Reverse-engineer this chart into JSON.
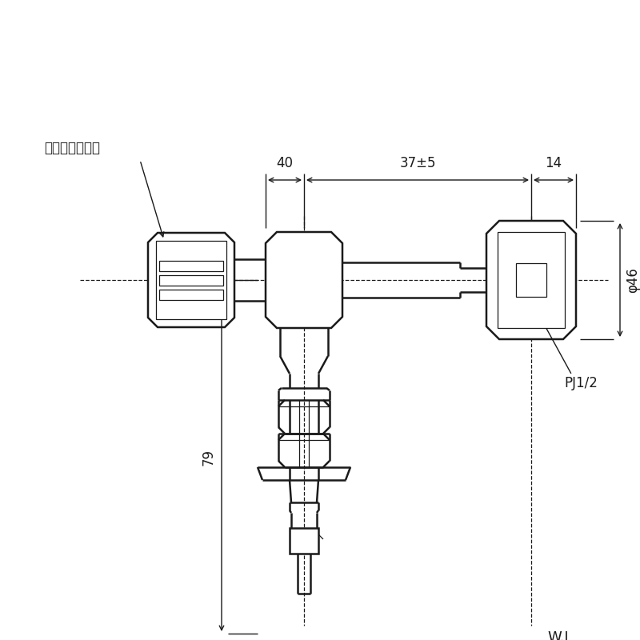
{
  "bg_color": "#ffffff",
  "line_color": "#1a1a1a",
  "label_pale_white": "ペールホワイト",
  "label_pj": "PJ1/2",
  "label_wl": "W.L",
  "dim_40": "40",
  "dim_37": "37±5",
  "dim_14": "14",
  "dim_79": "79",
  "dim_phi46": "φ46"
}
